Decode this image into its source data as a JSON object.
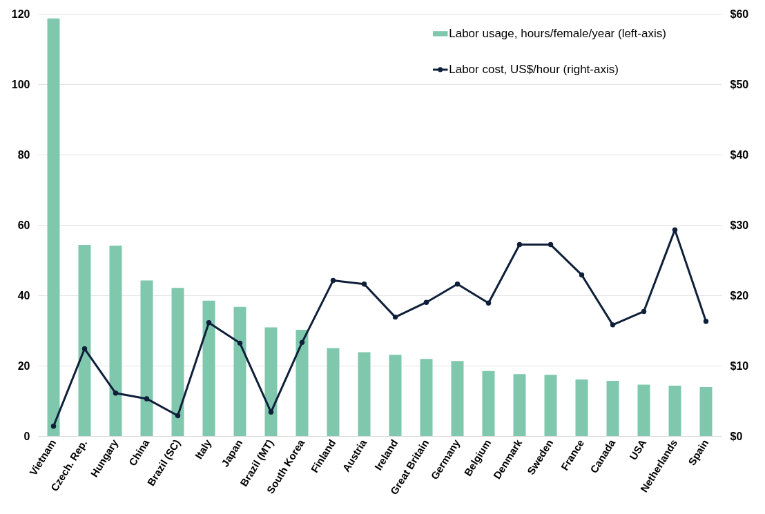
{
  "chart_data": {
    "type": "bar",
    "categories": [
      "Vietnam",
      "Czech. Rep.",
      "Hungary",
      "China",
      "Brazil (SC)",
      "Italy",
      "Japan",
      "Brazil (MT)",
      "South Korea",
      "Finland",
      "Austria",
      "Ireland",
      "Great Britain",
      "Germany",
      "Belgium",
      "Denmark",
      "Sweden",
      "France",
      "Canada",
      "USA",
      "Netherlands",
      "Spain"
    ],
    "series": [
      {
        "name": "Labor usage, hours/female/year (left-axis)",
        "color": "#7fc8ae",
        "values": [
          118.7,
          54.3,
          54.1,
          44.2,
          42.1,
          38.5,
          36.7,
          30.9,
          30.2,
          25.0,
          23.8,
          23.1,
          21.9,
          21.3,
          18.5,
          17.6,
          17.4,
          16.1,
          15.7,
          14.6,
          14.3,
          13.9
        ]
      },
      {
        "name": "Labor cost, US$/hour (right-axis)",
        "type": "line",
        "axis": "y2",
        "color": "#0f1f3a",
        "values": [
          1.4,
          12.4,
          6.1,
          5.3,
          2.9,
          16.1,
          13.2,
          3.4,
          13.3,
          22.1,
          21.6,
          16.9,
          19.0,
          21.6,
          18.9,
          27.2,
          27.2,
          22.9,
          15.8,
          17.7,
          29.3,
          16.3
        ]
      }
    ],
    "ylim": [
      0,
      120
    ],
    "yticks": [
      0,
      20,
      40,
      60,
      80,
      100,
      120
    ],
    "y2lim": [
      0,
      60
    ],
    "y2ticks": [
      {
        "value": 0,
        "label": "$0"
      },
      {
        "value": 10,
        "label": "$10"
      },
      {
        "value": 20,
        "label": "$20"
      },
      {
        "value": 30,
        "label": "$30"
      },
      {
        "value": 40,
        "label": "$40"
      },
      {
        "value": 50,
        "label": "$50"
      },
      {
        "value": 60,
        "label": "$60"
      }
    ],
    "grid": "y",
    "legend": "top right",
    "marker": "circle",
    "line_style": "solid"
  }
}
